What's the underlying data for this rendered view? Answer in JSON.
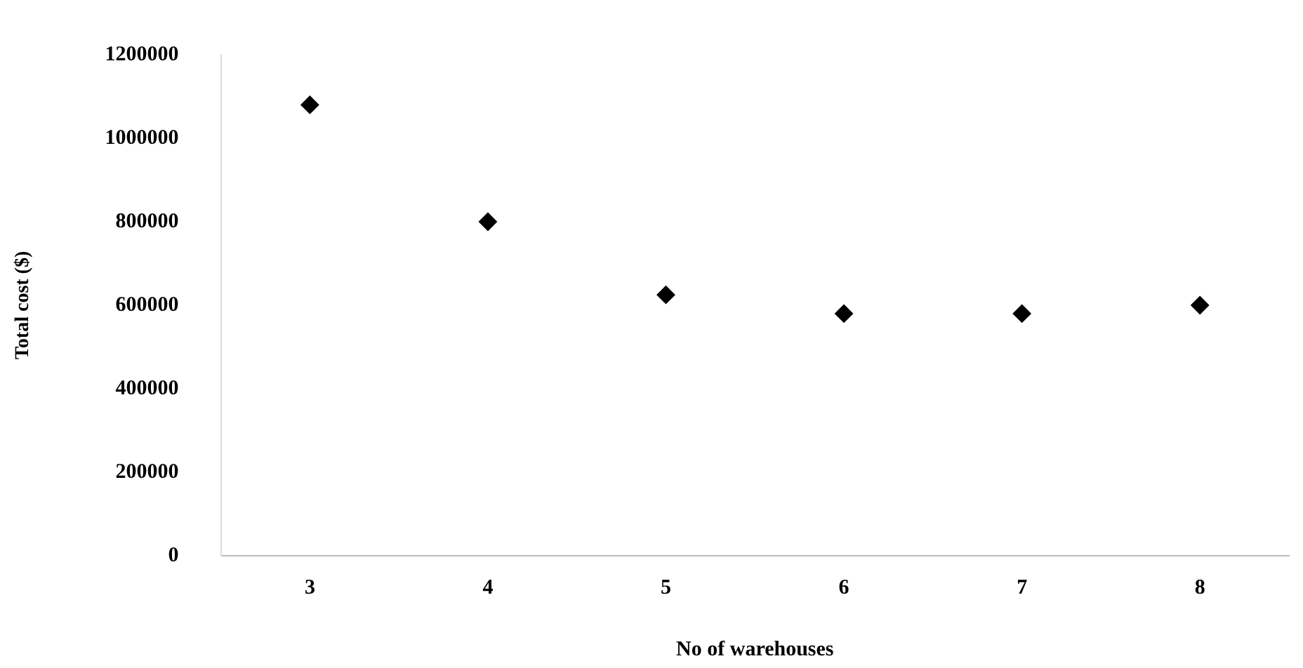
{
  "chart_data": {
    "type": "scatter",
    "xlabel": "No of warehouses",
    "ylabel": "Total cost ($)",
    "categories": [
      "3",
      "4",
      "5",
      "6",
      "7",
      "8"
    ],
    "series": [
      {
        "color": "#000000",
        "values": [
          1080000,
          800000,
          625000,
          580000,
          580000,
          600000
        ]
      }
    ],
    "ylim": [
      0,
      1200000
    ],
    "yticks": [
      0,
      200000,
      400000,
      600000,
      800000,
      1000000,
      1200000
    ],
    "grid": false,
    "legend": false,
    "marker": "diamond"
  }
}
